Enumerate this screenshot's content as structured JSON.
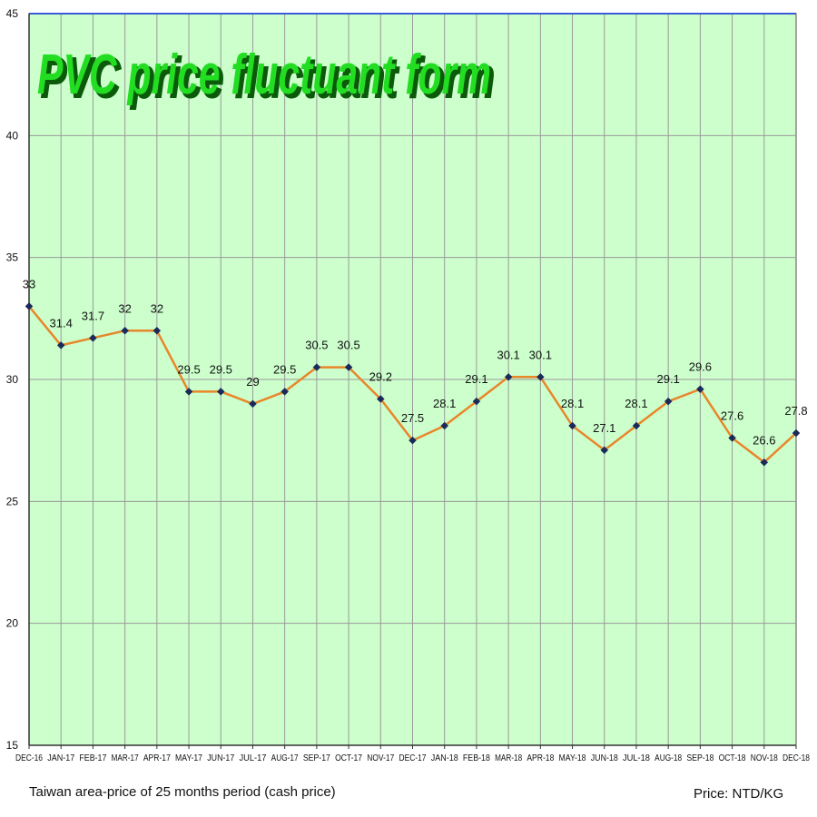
{
  "chart_data": {
    "type": "line",
    "title": "PVC price fluctuant form",
    "categories": [
      "DEC-16",
      "JAN-17",
      "FEB-17",
      "MAR-17",
      "APR-17",
      "MAY-17",
      "JUN-17",
      "JUL-17",
      "AUG-17",
      "SEP-17",
      "OCT-17",
      "NOV-17",
      "DEC-17",
      "JAN-18",
      "FEB-18",
      "MAR-18",
      "APR-18",
      "MAY-18",
      "JUN-18",
      "JUL-18",
      "AUG-18",
      "SEP-18",
      "OCT-18",
      "NOV-18",
      "DEC-18"
    ],
    "series": [
      {
        "values": [
          33,
          31.4,
          31.7,
          32,
          32,
          29.5,
          29.5,
          29,
          29.5,
          30.5,
          30.5,
          29.2,
          27.5,
          28.1,
          29.1,
          30.1,
          30.1,
          28.1,
          27.1,
          28.1,
          29.1,
          29.6,
          27.6,
          26.6,
          27.8
        ]
      }
    ],
    "data_labels": [
      "33",
      "31.4",
      "31.7",
      "32",
      "32",
      "29.5",
      "29.5",
      "29",
      "29.5",
      "30.5",
      "30.5",
      "29.2",
      "27.5",
      "28.1",
      "29.1",
      "30.1",
      "30.1",
      "28.1",
      "27.1",
      "28.1",
      "29.1",
      "29.6",
      "27.6",
      "26.6",
      "27.8"
    ],
    "y_ticks": [
      "15",
      "20",
      "25",
      "30",
      "35",
      "40",
      "45"
    ],
    "ylim": [
      15,
      45
    ],
    "grid": true,
    "legend": "none",
    "colors": {
      "plot_background": "#ccffcc",
      "line": "#e8862a",
      "marker": "#1a2a5a",
      "title_fill": "#22dd22",
      "title_shadow": "#0a5a0a",
      "grid": "#9a9a9a"
    }
  },
  "footer": {
    "left": "Taiwan area-price of 25 months period (cash price)",
    "right": "Price: NTD/KG"
  }
}
